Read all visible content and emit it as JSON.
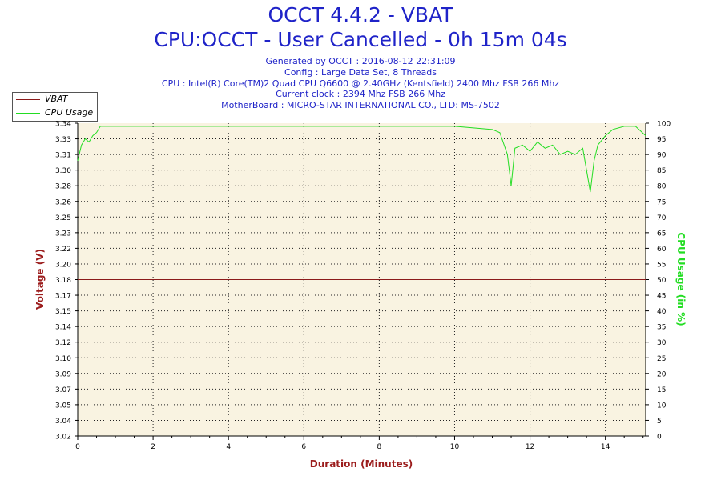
{
  "header": {
    "title": "OCCT 4.4.2 - VBAT",
    "subtitle": "CPU:OCCT - User Cancelled - 0h 15m 04s",
    "info_lines": [
      "Generated by OCCT : 2016-08-12 22:31:09",
      "Config : Large Data Set, 8 Threads",
      "CPU : Intel(R) Core(TM)2 Quad CPU Q6600 @ 2.40GHz (Kentsfield) 2400 Mhz FSB 266 Mhz",
      "Current clock : 2394 Mhz FSB 266 Mhz",
      "MotherBoard : MICRO-STAR INTERNATIONAL CO., LTD: MS-7502"
    ]
  },
  "legend": [
    {
      "label": "VBAT",
      "color": "#8b1a1a"
    },
    {
      "label": "CPU Usage",
      "color": "#22dd22"
    }
  ],
  "chart_data": {
    "type": "line",
    "xlabel": "Duration (Minutes)",
    "ylabel_left": "Voltage (V)",
    "ylabel_right": "CPU Usage (in %)",
    "xlim": [
      0,
      15.07
    ],
    "ylim_left": [
      3.02,
      3.34
    ],
    "ylim_right": [
      0,
      100
    ],
    "x_ticks": [
      "0",
      "2",
      "4",
      "6",
      "8",
      "10",
      "12",
      "14"
    ],
    "y_left_ticks": [
      "3.02",
      "3.04",
      "3.05",
      "3.07",
      "3.09",
      "3.10",
      "3.12",
      "3.14",
      "3.15",
      "3.17",
      "3.18",
      "3.20",
      "3.22",
      "3.23",
      "3.25",
      "3.26",
      "3.28",
      "3.30",
      "3.31",
      "3.33",
      "3.34"
    ],
    "y_right_ticks": [
      "0",
      "5",
      "10",
      "15",
      "20",
      "25",
      "30",
      "35",
      "40",
      "45",
      "50",
      "55",
      "60",
      "65",
      "70",
      "75",
      "80",
      "85",
      "90",
      "95",
      "100"
    ],
    "grid": true,
    "legend_position": "top-left",
    "series": [
      {
        "name": "VBAT",
        "color": "#8b1a1a",
        "x": [
          0,
          15.07
        ],
        "y": [
          3.18,
          3.18
        ]
      },
      {
        "name": "CPU Usage",
        "color": "#22dd22",
        "x": [
          0,
          0.1,
          0.2,
          0.3,
          0.4,
          0.5,
          0.6,
          1,
          2,
          3,
          4,
          5,
          6,
          7,
          8,
          9,
          10,
          11,
          11.2,
          11.4,
          11.5,
          11.6,
          11.8,
          12,
          12.2,
          12.4,
          12.6,
          12.8,
          13,
          13.2,
          13.4,
          13.6,
          13.7,
          13.8,
          14,
          14.2,
          14.5,
          14.8,
          15.07
        ],
        "y": [
          88,
          93,
          95,
          94,
          96,
          97,
          99,
          99,
          99,
          99,
          99,
          99,
          99,
          99,
          99,
          99,
          99,
          98,
          97,
          90,
          80,
          92,
          93,
          91,
          94,
          92,
          93,
          90,
          91,
          90,
          92,
          78,
          88,
          93,
          96,
          98,
          99,
          99,
          96
        ]
      }
    ]
  }
}
